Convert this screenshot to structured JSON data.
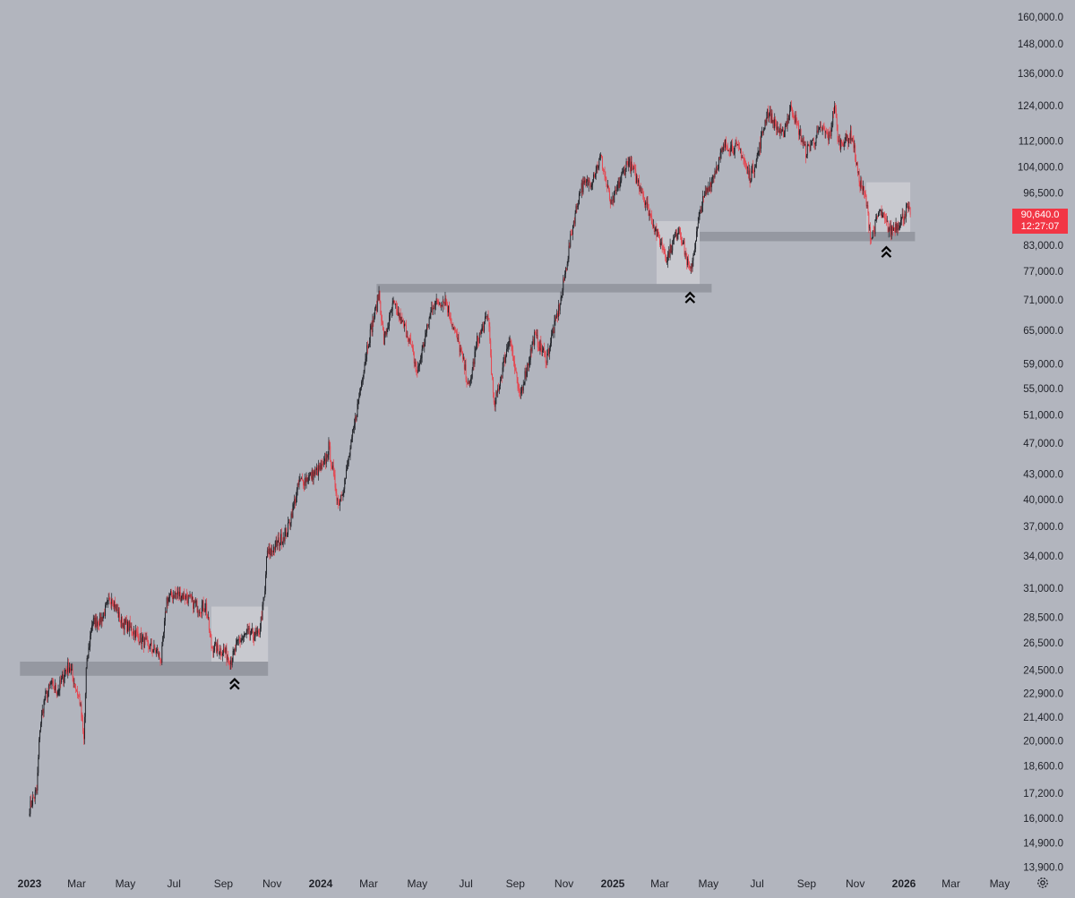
{
  "chart_data": {
    "type": "candlestick",
    "instrument_hint": "",
    "y_scale": "log",
    "ylim": [
      13300,
      164000
    ],
    "y_ticks": [
      13900,
      14900,
      16000,
      17200,
      18600,
      20000,
      21400,
      22900,
      24500,
      26500,
      28500,
      31000,
      34000,
      37000,
      40000,
      43000,
      47000,
      51000,
      55000,
      59000,
      65000,
      71000,
      77000,
      83000,
      90640,
      96500,
      104000,
      112000,
      124000,
      136000,
      148000,
      160000
    ],
    "y_tick_labels": [
      "13,900.0",
      "14,900.0",
      "16,000.0",
      "17,200.0",
      "18,600.0",
      "20,000.0",
      "21,400.0",
      "22,900.0",
      "24,500.0",
      "26,500.0",
      "28,500.0",
      "31,000.0",
      "34,000.0",
      "37,000.0",
      "40,000.0",
      "43,000.0",
      "47,000.0",
      "51,000.0",
      "55,000.0",
      "59,000.0",
      "65,000.0",
      "71,000.0",
      "77,000.0",
      "83,000.0",
      "",
      "96,500.0",
      "104,000.0",
      "112,000.0",
      "124,000.0",
      "136,000.0",
      "148,000.0",
      "160,000.0"
    ],
    "x_labels": [
      {
        "date": "2023-01",
        "label": "2023",
        "bold": true
      },
      {
        "date": "2023-03",
        "label": "Mar"
      },
      {
        "date": "2023-05",
        "label": "May"
      },
      {
        "date": "2023-07",
        "label": "Jul"
      },
      {
        "date": "2023-09",
        "label": "Sep"
      },
      {
        "date": "2023-11",
        "label": "Nov"
      },
      {
        "date": "2024-01",
        "label": "2024",
        "bold": true
      },
      {
        "date": "2024-03",
        "label": "Mar"
      },
      {
        "date": "2024-05",
        "label": "May"
      },
      {
        "date": "2024-07",
        "label": "Jul"
      },
      {
        "date": "2024-09",
        "label": "Sep"
      },
      {
        "date": "2024-11",
        "label": "Nov"
      },
      {
        "date": "2025-01",
        "label": "2025",
        "bold": true
      },
      {
        "date": "2025-03",
        "label": "Mar"
      },
      {
        "date": "2025-05",
        "label": "May"
      },
      {
        "date": "2025-07",
        "label": "Jul"
      },
      {
        "date": "2025-09",
        "label": "Sep"
      },
      {
        "date": "2025-11",
        "label": "Nov"
      },
      {
        "date": "2026-01",
        "label": "2026",
        "bold": true
      },
      {
        "date": "2026-03",
        "label": "Mar"
      },
      {
        "date": "2026-05",
        "label": "May"
      }
    ],
    "price_path": [
      [
        "2023-01-01",
        16500
      ],
      [
        "2023-01-10",
        17300
      ],
      [
        "2023-01-14",
        20800
      ],
      [
        "2023-01-20",
        22600
      ],
      [
        "2023-01-28",
        23500
      ],
      [
        "2023-02-05",
        23000
      ],
      [
        "2023-02-15",
        24500
      ],
      [
        "2023-02-20",
        24800
      ],
      [
        "2023-03-05",
        22400
      ],
      [
        "2023-03-10",
        20000
      ],
      [
        "2023-03-13",
        24500
      ],
      [
        "2023-03-20",
        28000
      ],
      [
        "2023-04-01",
        28400
      ],
      [
        "2023-04-14",
        30300
      ],
      [
        "2023-04-25",
        28200
      ],
      [
        "2023-05-10",
        27500
      ],
      [
        "2023-05-25",
        26500
      ],
      [
        "2023-06-10",
        25800
      ],
      [
        "2023-06-15",
        25200
      ],
      [
        "2023-06-22",
        30000
      ],
      [
        "2023-07-01",
        30500
      ],
      [
        "2023-07-15",
        30300
      ],
      [
        "2023-08-01",
        29300
      ],
      [
        "2023-08-10",
        29500
      ],
      [
        "2023-08-17",
        26200
      ],
      [
        "2023-09-01",
        25900
      ],
      [
        "2023-09-11",
        25200
      ],
      [
        "2023-09-20",
        26600
      ],
      [
        "2023-10-01",
        27200
      ],
      [
        "2023-10-15",
        27000
      ],
      [
        "2023-10-23",
        30500
      ],
      [
        "2023-10-25",
        34000
      ],
      [
        "2023-11-05",
        35000
      ],
      [
        "2023-11-20",
        36500
      ],
      [
        "2023-12-05",
        42000
      ],
      [
        "2023-12-15",
        42500
      ],
      [
        "2024-01-05",
        44000
      ],
      [
        "2024-01-11",
        46500
      ],
      [
        "2024-01-23",
        39500
      ],
      [
        "2024-02-01",
        42500
      ],
      [
        "2024-02-15",
        51500
      ],
      [
        "2024-02-28",
        62000
      ],
      [
        "2024-03-10",
        69000
      ],
      [
        "2024-03-14",
        72500
      ],
      [
        "2024-03-20",
        63000
      ],
      [
        "2024-04-01",
        70000
      ],
      [
        "2024-04-20",
        64000
      ],
      [
        "2024-05-01",
        57500
      ],
      [
        "2024-05-20",
        70000
      ],
      [
        "2024-06-05",
        71000
      ],
      [
        "2024-06-25",
        61000
      ],
      [
        "2024-07-05",
        55000
      ],
      [
        "2024-07-15",
        63000
      ],
      [
        "2024-07-29",
        68000
      ],
      [
        "2024-08-05",
        52000
      ],
      [
        "2024-08-25",
        64000
      ],
      [
        "2024-09-06",
        53500
      ],
      [
        "2024-09-25",
        64000
      ],
      [
        "2024-10-10",
        60000
      ],
      [
        "2024-10-28",
        71000
      ],
      [
        "2024-11-12",
        88000
      ],
      [
        "2024-11-22",
        98000
      ],
      [
        "2024-12-05",
        100000
      ],
      [
        "2024-12-17",
        107000
      ],
      [
        "2024-12-30",
        93000
      ],
      [
        "2025-01-20",
        106000
      ],
      [
        "2025-02-05",
        98000
      ],
      [
        "2025-02-25",
        86000
      ],
      [
        "2025-03-10",
        80000
      ],
      [
        "2025-03-25",
        87500
      ],
      [
        "2025-04-08",
        76500
      ],
      [
        "2025-04-22",
        93000
      ],
      [
        "2025-05-22",
        111000
      ],
      [
        "2025-06-10",
        109000
      ],
      [
        "2025-06-22",
        101000
      ],
      [
        "2025-07-01",
        107000
      ],
      [
        "2025-07-14",
        122000
      ],
      [
        "2025-08-01",
        113500
      ],
      [
        "2025-08-13",
        123500
      ],
      [
        "2025-08-31",
        108500
      ],
      [
        "2025-09-20",
        116000
      ],
      [
        "2025-09-30",
        113000
      ],
      [
        "2025-10-06",
        124500
      ],
      [
        "2025-10-11",
        111000
      ],
      [
        "2025-10-28",
        114000
      ],
      [
        "2025-11-05",
        101000
      ],
      [
        "2025-11-14",
        95000
      ],
      [
        "2025-11-21",
        84500
      ],
      [
        "2025-12-01",
        91500
      ],
      [
        "2025-12-15",
        86500
      ],
      [
        "2025-12-28",
        89000
      ],
      [
        "2026-01-05",
        92500
      ],
      [
        "2026-01-09",
        90640
      ]
    ],
    "zones": [
      {
        "from": "2022-12-20",
        "to": "2023-10-27",
        "low": 24100,
        "high": 25100,
        "shade": "dark"
      },
      {
        "from": "2023-08-17",
        "to": "2023-10-27",
        "low": 25100,
        "high": 29400,
        "shade": "light"
      },
      {
        "from": "2024-03-11",
        "to": "2025-05-05",
        "low": 72500,
        "high": 74300,
        "shade": "dark"
      },
      {
        "from": "2025-02-25",
        "to": "2025-04-20",
        "low": 74300,
        "high": 89000,
        "shade": "light"
      },
      {
        "from": "2025-04-20",
        "to": "2026-01-15",
        "low": 84000,
        "high": 86300,
        "shade": "dark"
      },
      {
        "from": "2025-11-15",
        "to": "2026-01-09",
        "low": 86300,
        "high": 99500,
        "shade": "light"
      }
    ],
    "markers": [
      {
        "date": "2023-09-15",
        "price": 23500,
        "symbol": "double-chevron-up"
      },
      {
        "date": "2025-04-08",
        "price": 71300,
        "symbol": "double-chevron-up"
      },
      {
        "date": "2025-12-10",
        "price": 81300,
        "symbol": "double-chevron-up"
      }
    ],
    "last_price": {
      "price": 90640,
      "label": "90,640.0",
      "countdown": "12:27:07"
    },
    "colors": {
      "background": "#b2b5be",
      "up": "#1c1e24",
      "down": "#e8404a",
      "zone_dark": "#9598a1",
      "zone_light": "#cbcdd2",
      "price_tag": "#f23645",
      "axis_text": "#1f2128"
    }
  },
  "price_tag": {
    "price": "90,640.0",
    "countdown": "12:27:07"
  },
  "icons": {
    "settings": "gear-icon"
  }
}
